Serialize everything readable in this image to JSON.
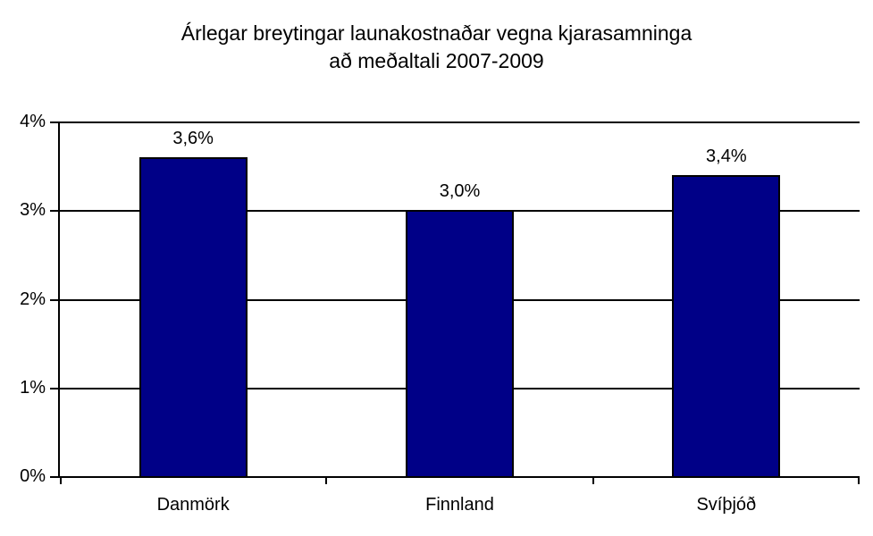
{
  "title": {
    "line1": "Árlegar breytingar launakostnaðar vegna kjarasamninga",
    "line2": "að meðaltali 2007-2009"
  },
  "chart_data": {
    "type": "bar",
    "title": "Árlegar breytingar launakostnaðar vegna kjarasamninga að meðaltali 2007-2009",
    "categories": [
      "Danmörk",
      "Finnland",
      "Svíþjóð"
    ],
    "values": [
      3.6,
      3.0,
      3.4
    ],
    "value_labels": [
      "3,6%",
      "3,0%",
      "3,4%"
    ],
    "xlabel": "",
    "ylabel": "",
    "ylim": [
      0,
      4
    ],
    "y_ticks": [
      "0%",
      "1%",
      "2%",
      "3%",
      "4%"
    ],
    "grid": true,
    "legend": false,
    "bar_color": "#000087",
    "axis_color": "#000000",
    "background_color": "#ffffff"
  }
}
